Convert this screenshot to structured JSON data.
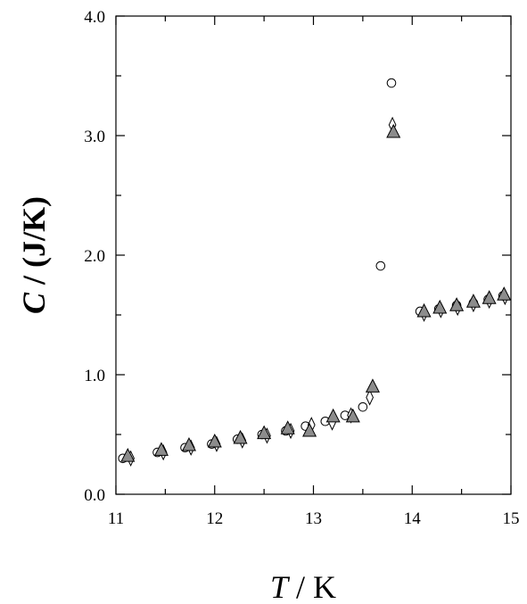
{
  "chart_data": {
    "type": "scatter",
    "xlabel": {
      "var": "T",
      "unit": " / K"
    },
    "ylabel": {
      "var": "C",
      "unit": " / (J/K)"
    },
    "xlim": [
      11,
      15
    ],
    "ylim": [
      0,
      4
    ],
    "x_ticks": [
      "11",
      "12",
      "13",
      "14",
      "15"
    ],
    "y_ticks": [
      "0.0",
      "1.0",
      "2.0",
      "3.0",
      "4.0"
    ],
    "x_minor_step": 0.5,
    "y_minor_step": 0.5,
    "grid": false,
    "legend": "none",
    "series": [
      {
        "marker": "circle",
        "fill": "#ffffff",
        "points": [
          [
            11.07,
            0.3
          ],
          [
            11.42,
            0.35
          ],
          [
            11.7,
            0.39
          ],
          [
            11.97,
            0.42
          ],
          [
            12.23,
            0.46
          ],
          [
            12.48,
            0.5
          ],
          [
            12.72,
            0.53
          ],
          [
            12.92,
            0.57
          ],
          [
            13.12,
            0.61
          ],
          [
            13.32,
            0.66
          ],
          [
            13.5,
            0.73
          ],
          [
            13.68,
            1.91
          ],
          [
            13.79,
            3.44
          ],
          [
            14.08,
            1.53
          ],
          [
            14.27,
            1.55
          ],
          [
            14.45,
            1.58
          ],
          [
            14.62,
            1.6
          ],
          [
            14.77,
            1.63
          ],
          [
            14.92,
            1.66
          ]
        ]
      },
      {
        "marker": "diamond",
        "fill": "#ffffff",
        "points": [
          [
            11.15,
            0.3
          ],
          [
            11.48,
            0.35
          ],
          [
            11.76,
            0.39
          ],
          [
            12.02,
            0.42
          ],
          [
            12.28,
            0.45
          ],
          [
            12.53,
            0.49
          ],
          [
            12.77,
            0.53
          ],
          [
            12.98,
            0.58
          ],
          [
            13.19,
            0.6
          ],
          [
            13.38,
            0.66
          ],
          [
            13.57,
            0.81
          ],
          [
            13.8,
            3.09
          ],
          [
            14.12,
            1.51
          ],
          [
            14.29,
            1.54
          ],
          [
            14.46,
            1.56
          ],
          [
            14.62,
            1.59
          ],
          [
            14.78,
            1.62
          ],
          [
            14.94,
            1.65
          ]
        ]
      },
      {
        "marker": "triangle",
        "fill": "#8c8c8c",
        "points": [
          [
            11.12,
            0.32
          ],
          [
            11.46,
            0.37
          ],
          [
            11.74,
            0.41
          ],
          [
            12.0,
            0.44
          ],
          [
            12.26,
            0.47
          ],
          [
            12.5,
            0.51
          ],
          [
            12.74,
            0.55
          ],
          [
            12.96,
            0.53
          ],
          [
            13.2,
            0.65
          ],
          [
            13.4,
            0.65
          ],
          [
            13.6,
            0.9
          ],
          [
            13.81,
            3.03
          ],
          [
            14.12,
            1.53
          ],
          [
            14.28,
            1.56
          ],
          [
            14.45,
            1.58
          ],
          [
            14.62,
            1.61
          ],
          [
            14.78,
            1.64
          ],
          [
            14.93,
            1.67
          ]
        ]
      }
    ]
  }
}
